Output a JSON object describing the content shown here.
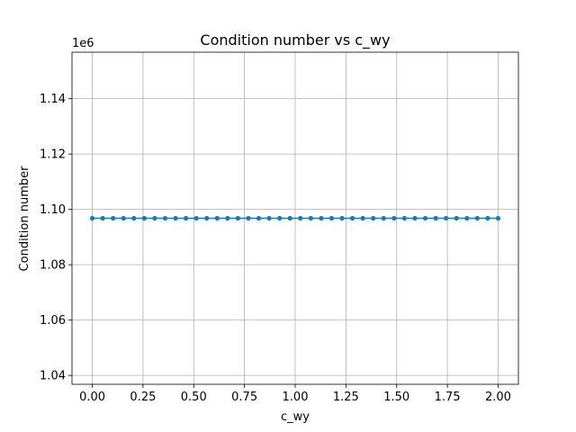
{
  "chart_data": {
    "type": "line",
    "title": "Condition number vs c_wy",
    "xlabel": "c_wy",
    "ylabel": "Condition number",
    "offset_label": "1e6",
    "xlim": [
      -0.1,
      2.1
    ],
    "ylim": [
      1.0368,
      1.1568
    ],
    "x_ticks": [
      0.0,
      0.25,
      0.5,
      0.75,
      1.0,
      1.25,
      1.5,
      1.75,
      2.0
    ],
    "x_tick_labels": [
      "0.00",
      "0.25",
      "0.50",
      "0.75",
      "1.00",
      "1.25",
      "1.50",
      "1.75",
      "2.00"
    ],
    "y_ticks": [
      1.04,
      1.06,
      1.08,
      1.1,
      1.12,
      1.14
    ],
    "y_tick_labels": [
      "1.04",
      "1.06",
      "1.08",
      "1.10",
      "1.12",
      "1.14"
    ],
    "grid": true,
    "marker": "circle",
    "series": [
      {
        "color": "#1f77b4",
        "x": [
          0.0,
          0.05128,
          0.10256,
          0.15385,
          0.20513,
          0.25641,
          0.30769,
          0.35897,
          0.41026,
          0.46154,
          0.51282,
          0.5641,
          0.61538,
          0.66667,
          0.71795,
          0.76923,
          0.82051,
          0.87179,
          0.92308,
          0.97436,
          1.02564,
          1.07692,
          1.12821,
          1.17949,
          1.23077,
          1.28205,
          1.33333,
          1.38462,
          1.4359,
          1.48718,
          1.53846,
          1.58974,
          1.64103,
          1.69231,
          1.74359,
          1.79487,
          1.84615,
          1.89744,
          1.94872,
          2.0
        ],
        "y": [
          1.0968,
          1.0968,
          1.0968,
          1.0968,
          1.0968,
          1.0968,
          1.0968,
          1.0968,
          1.0968,
          1.0968,
          1.0968,
          1.0968,
          1.0968,
          1.0968,
          1.0968,
          1.0968,
          1.0968,
          1.0968,
          1.0968,
          1.0968,
          1.0968,
          1.0968,
          1.0968,
          1.0968,
          1.0968,
          1.0968,
          1.0968,
          1.0968,
          1.0968,
          1.0968,
          1.0968,
          1.0968,
          1.0968,
          1.0968,
          1.0968,
          1.0968,
          1.0968,
          1.0968,
          1.0968,
          1.0968
        ]
      }
    ]
  }
}
